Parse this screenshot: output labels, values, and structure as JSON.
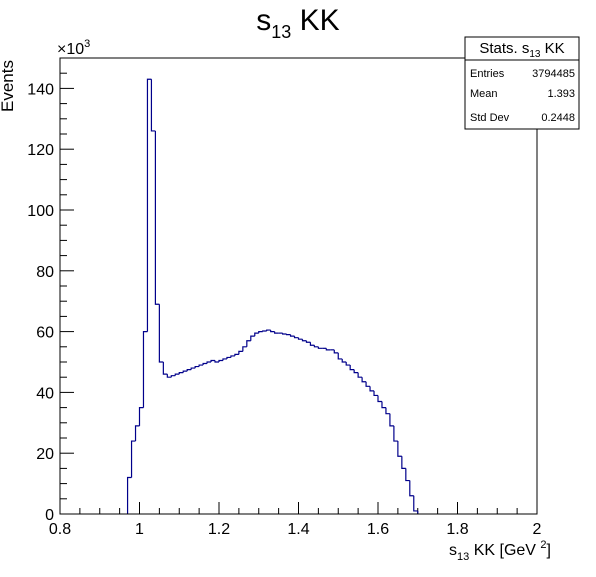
{
  "chart_data": {
    "type": "histogram",
    "title": "s13 KK",
    "xlabel": "s13 KK [GeV 2]",
    "ylabel": "Events",
    "y_multiplier": "×10^3",
    "xlim": [
      0.8,
      2.0
    ],
    "ylim": [
      0,
      150
    ],
    "x_ticks": [
      "0.8",
      "1",
      "1.2",
      "1.4",
      "1.6",
      "1.8",
      "2"
    ],
    "y_ticks": [
      "0",
      "20",
      "40",
      "60",
      "80",
      "100",
      "120",
      "140"
    ],
    "line_color": "#00008b",
    "bin_width": 0.01,
    "bin_start": 0.97,
    "values": [
      12,
      24,
      29,
      35,
      60,
      143,
      126,
      69,
      50,
      46,
      45,
      45.5,
      46,
      46.5,
      47,
      47.5,
      48,
      48.5,
      49,
      49.5,
      50,
      50.5,
      50,
      50.5,
      51,
      51.5,
      52,
      52.5,
      53.5,
      55,
      57,
      58.5,
      59.5,
      60,
      60.2,
      60.5,
      60,
      59.5,
      59.5,
      59.2,
      59,
      58.5,
      58,
      57.5,
      57,
      56.5,
      55.5,
      55,
      54.5,
      54.5,
      54,
      54,
      53,
      51,
      50,
      49,
      47.5,
      46.5,
      45,
      43.5,
      42,
      40.5,
      39,
      37,
      35,
      33,
      29,
      24,
      19,
      15,
      11,
      6,
      1
    ],
    "stats": {
      "title": "Stats. s13 KK",
      "rows": [
        {
          "label": "Entries",
          "value": "3794485"
        },
        {
          "label": "Mean",
          "value": "1.393"
        },
        {
          "label": "Std Dev",
          "value": "0.2448"
        }
      ]
    }
  }
}
